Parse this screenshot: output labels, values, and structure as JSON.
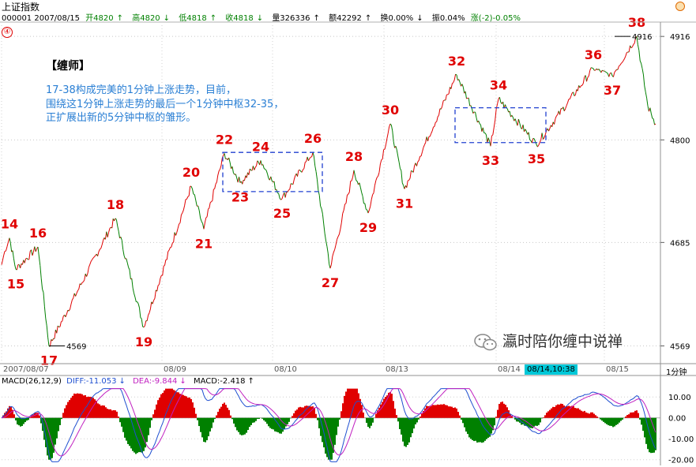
{
  "header": {
    "title": "上证指数",
    "code_date": "000001 2007/08/15",
    "open": "开4820",
    "high": "高4820",
    "low": "低4818",
    "close": "收4818",
    "volume": "量326336",
    "amount": "额42292",
    "turnover": "换0.00%",
    "amplitude": "振0.04%",
    "change": "涨(-2)-0.05%",
    "arrow_up": "↑",
    "arrow_down": "↓",
    "tag": "④"
  },
  "note": {
    "title": "【缠师】",
    "lines": [
      "17-38构成完美的1分钟上涨走势，目前，",
      "围绕这1分钟上涨走势的最后一个1分钟中枢32-35，",
      "正扩展出新的5分钟中枢的雏形。"
    ]
  },
  "watermark": "瀛时陪你缠中说禅",
  "period": "1分钟",
  "time_badge": "08/14,10:38",
  "macd_header": {
    "params": "MACD(26,12,9)",
    "diff": "DIFF:-11.053",
    "dea": "DEA:-9.844",
    "macd": "MACD:-2.418"
  },
  "colors": {
    "up": "#e00000",
    "down": "#008000",
    "box": "#2040d0",
    "label": "#e00000",
    "diff": "#1f4fd0",
    "dea": "#c020c0"
  },
  "chart_data": [
    {
      "type": "line",
      "panel": "price",
      "x_labels": [
        "2007/08/07",
        "08/09",
        "08/10",
        "08/13",
        "08/14",
        "08/15"
      ],
      "y_ticks": [
        4569,
        4685,
        4800,
        4916
      ],
      "ylim": [
        4550,
        4925
      ],
      "annotated_extremes": [
        {
          "label": "4916",
          "value": 4916
        },
        {
          "label": "4569",
          "value": 4569
        }
      ],
      "swing_points": [
        {
          "label": "14",
          "value": 4690
        },
        {
          "label": "15",
          "value": 4655
        },
        {
          "label": "16",
          "value": 4680
        },
        {
          "label": "17",
          "value": 4569
        },
        {
          "label": "18",
          "value": 4712
        },
        {
          "label": "19",
          "value": 4590
        },
        {
          "label": "20",
          "value": 4748
        },
        {
          "label": "21",
          "value": 4700
        },
        {
          "label": "22",
          "value": 4785
        },
        {
          "label": "23",
          "value": 4752
        },
        {
          "label": "24",
          "value": 4777
        },
        {
          "label": "25",
          "value": 4734
        },
        {
          "label": "26",
          "value": 4786
        },
        {
          "label": "27",
          "value": 4656
        },
        {
          "label": "28",
          "value": 4766
        },
        {
          "label": "29",
          "value": 4718
        },
        {
          "label": "30",
          "value": 4818
        },
        {
          "label": "31",
          "value": 4745
        },
        {
          "label": "32",
          "value": 4873
        },
        {
          "label": "33",
          "value": 4793
        },
        {
          "label": "34",
          "value": 4846
        },
        {
          "label": "35",
          "value": 4795
        },
        {
          "label": "36",
          "value": 4880
        },
        {
          "label": "37",
          "value": 4872
        },
        {
          "label": "38",
          "value": 4916
        }
      ],
      "current_value": 4818,
      "zhongshu_boxes": [
        {
          "from": "22",
          "to": "26",
          "high": 4786,
          "low": 4742
        },
        {
          "from": "32",
          "to": "35",
          "high": 4836,
          "low": 4797
        }
      ]
    },
    {
      "type": "bar",
      "panel": "macd",
      "y_ticks": [
        10.0,
        0.0,
        -10.0,
        -20.0
      ],
      "ylim": [
        -22,
        15
      ],
      "diff_last": -11.053,
      "dea_last": -9.844,
      "macd_last": -2.418
    }
  ]
}
